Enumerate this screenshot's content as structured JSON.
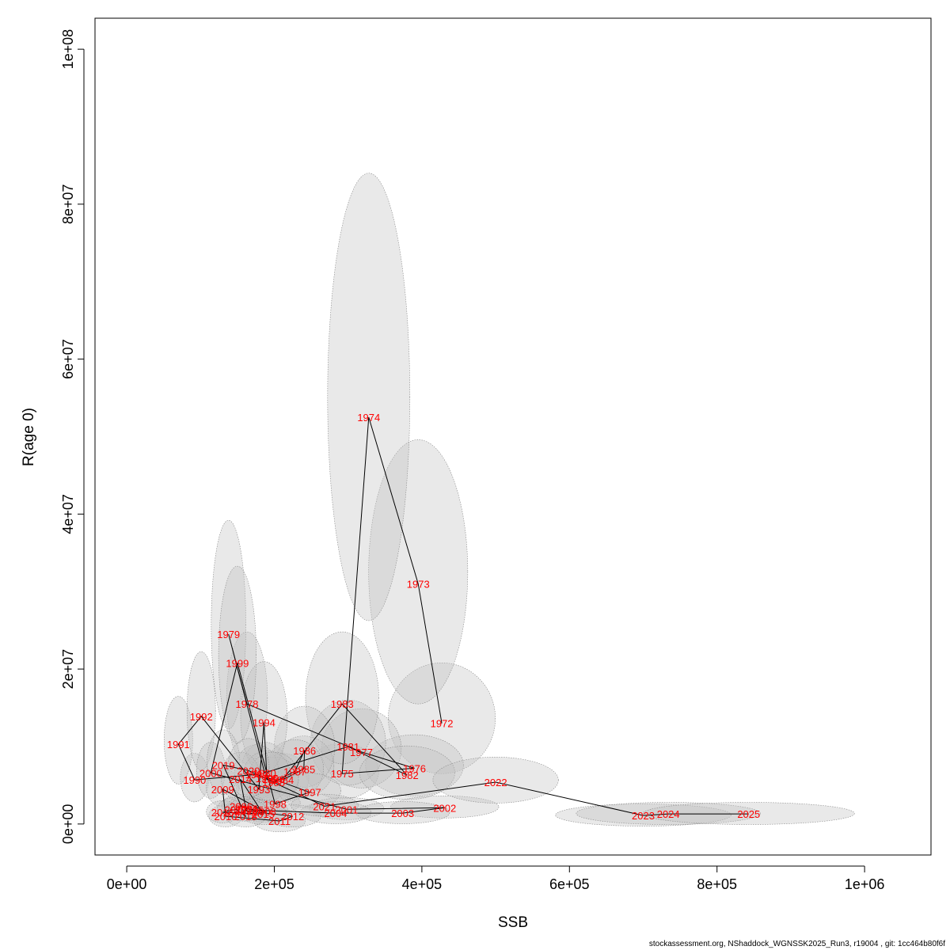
{
  "chart_data": {
    "type": "scatter",
    "title": "",
    "xlabel": "SSB",
    "ylabel": "R(age 0)",
    "xlim": [
      -43000,
      1090000
    ],
    "ylim": [
      -4000000,
      104000000
    ],
    "x_ticks": [
      0,
      200000,
      400000,
      600000,
      800000,
      1000000
    ],
    "x_tick_labels": [
      "0e+00",
      "2e+05",
      "4e+05",
      "6e+05",
      "8e+05",
      "1e+06"
    ],
    "y_ticks": [
      0,
      20000000,
      40000000,
      60000000,
      80000000,
      100000000
    ],
    "y_tick_labels": [
      "0e+00",
      "2e+07",
      "4e+07",
      "6e+07",
      "8e+07",
      "1e+08"
    ],
    "grid": false,
    "label_color": "#ff0000",
    "line_color": "#000000",
    "ellipse_fill": "#bfbfbf",
    "points": [
      {
        "year": "1972",
        "x": 427000,
        "y": 13000000
      },
      {
        "year": "1973",
        "x": 395000,
        "y": 31000000
      },
      {
        "year": "1974",
        "x": 328000,
        "y": 52500000
      },
      {
        "year": "1975",
        "x": 292000,
        "y": 6500000
      },
      {
        "year": "1976",
        "x": 390000,
        "y": 7200000
      },
      {
        "year": "1977",
        "x": 318000,
        "y": 9300000
      },
      {
        "year": "1978",
        "x": 163000,
        "y": 15500000
      },
      {
        "year": "1979",
        "x": 138000,
        "y": 24500000
      },
      {
        "year": "1980",
        "x": 187000,
        "y": 6600000
      },
      {
        "year": "1981",
        "x": 300000,
        "y": 10000000
      },
      {
        "year": "1982",
        "x": 380000,
        "y": 6300000
      },
      {
        "year": "1983",
        "x": 292000,
        "y": 15500000
      },
      {
        "year": "1984",
        "x": 211000,
        "y": 5700000
      },
      {
        "year": "1985",
        "x": 240000,
        "y": 7100000
      },
      {
        "year": "1986",
        "x": 241000,
        "y": 9500000
      },
      {
        "year": "1987",
        "x": 228000,
        "y": 6800000
      },
      {
        "year": "1988",
        "x": 199000,
        "y": 5400000
      },
      {
        "year": "1989",
        "x": 176000,
        "y": 6400000
      },
      {
        "year": "1990",
        "x": 92000,
        "y": 5700000
      },
      {
        "year": "1991",
        "x": 70000,
        "y": 10300000
      },
      {
        "year": "1992",
        "x": 101000,
        "y": 13900000
      },
      {
        "year": "1993",
        "x": 179000,
        "y": 4500000
      },
      {
        "year": "1994",
        "x": 186000,
        "y": 13100000
      },
      {
        "year": "1995",
        "x": 190000,
        "y": 5900000
      },
      {
        "year": "1996",
        "x": 199000,
        "y": 5800000
      },
      {
        "year": "1997",
        "x": 248000,
        "y": 4100000
      },
      {
        "year": "1998",
        "x": 201000,
        "y": 2600000
      },
      {
        "year": "1999",
        "x": 150000,
        "y": 20800000
      },
      {
        "year": "2000",
        "x": 114000,
        "y": 6600000
      },
      {
        "year": "2001",
        "x": 298000,
        "y": 1900000
      },
      {
        "year": "2002",
        "x": 431000,
        "y": 2100000
      },
      {
        "year": "2003",
        "x": 374000,
        "y": 1400000
      },
      {
        "year": "2004",
        "x": 283000,
        "y": 1400000
      },
      {
        "year": "2005",
        "x": 170000,
        "y": 1800000
      },
      {
        "year": "2006",
        "x": 155000,
        "y": 2300000
      },
      {
        "year": "2007",
        "x": 162000,
        "y": 2000000
      },
      {
        "year": "2008",
        "x": 187000,
        "y": 1600000
      },
      {
        "year": "2009",
        "x": 130000,
        "y": 4500000
      },
      {
        "year": "2010",
        "x": 134000,
        "y": 1000000
      },
      {
        "year": "2011",
        "x": 207000,
        "y": 400000
      },
      {
        "year": "2012",
        "x": 225000,
        "y": 1000000
      },
      {
        "year": "2013",
        "x": 162000,
        "y": 1700000
      },
      {
        "year": "2014",
        "x": 154000,
        "y": 5800000
      },
      {
        "year": "2015",
        "x": 185000,
        "y": 1300000
      },
      {
        "year": "2016",
        "x": 130000,
        "y": 1500000
      },
      {
        "year": "2017",
        "x": 148000,
        "y": 1900000
      },
      {
        "year": "2018",
        "x": 161000,
        "y": 1000000
      },
      {
        "year": "2019",
        "x": 131000,
        "y": 7600000
      },
      {
        "year": "2020",
        "x": 165000,
        "y": 6900000
      },
      {
        "year": "2021",
        "x": 268000,
        "y": 2300000
      },
      {
        "year": "2022",
        "x": 500000,
        "y": 5400000
      },
      {
        "year": "2023",
        "x": 700000,
        "y": 1100000
      },
      {
        "year": "2024",
        "x": 734000,
        "y": 1300000
      },
      {
        "year": "2025",
        "x": 843000,
        "y": 1300000
      }
    ]
  },
  "footer": "stockassessment.org, NShaddock_WGNSSK2025_Run3, r19004 , git: 1cc464b80f6f"
}
